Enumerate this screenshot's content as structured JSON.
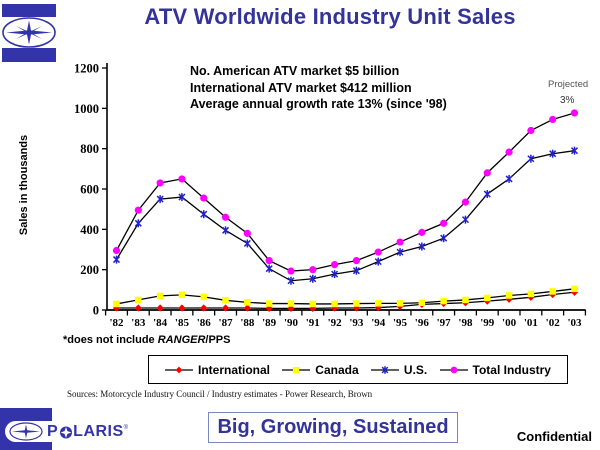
{
  "slide": {
    "title": "ATV Worldwide Industry Unit Sales",
    "tagline": "Big, Growing, Sustained",
    "confidential": "Confidential",
    "brand": {
      "prefix": "P",
      "suffix": "LARIS",
      "trademark": "®"
    }
  },
  "chart_data": {
    "type": "line",
    "ylabel": "Sales in thousands",
    "ylim": [
      0,
      1200
    ],
    "yticks": [
      0,
      200,
      400,
      600,
      800,
      1000,
      1200
    ],
    "grid": false,
    "legend_position": "bottom",
    "line_color": "#000000",
    "categories": [
      "'82",
      "'83",
      "'84",
      "'85",
      "'86",
      "'87",
      "'88",
      "'89",
      "'90",
      "'91",
      "'92",
      "'93",
      "'94",
      "'95",
      "'96",
      "'97",
      "'98",
      "'99",
      "'00",
      "'01",
      "'02",
      "'03"
    ],
    "series": [
      {
        "name": "International",
        "marker": "diamond",
        "color": "#ff0000",
        "values": [
          10,
          10,
          10,
          10,
          10,
          10,
          10,
          8,
          8,
          8,
          10,
          10,
          12,
          18,
          28,
          32,
          36,
          44,
          53,
          63,
          77,
          88
        ]
      },
      {
        "name": "Canada",
        "marker": "square",
        "color": "#ffff00",
        "values": [
          30,
          50,
          70,
          75,
          65,
          48,
          38,
          32,
          32,
          30,
          30,
          32,
          33,
          33,
          36,
          44,
          50,
          60,
          72,
          80,
          92,
          105
        ]
      },
      {
        "name": "U.S.",
        "marker": "star",
        "color": "#2222cc",
        "values": [
          250,
          430,
          550,
          560,
          475,
          395,
          330,
          205,
          145,
          155,
          178,
          195,
          240,
          287,
          315,
          356,
          448,
          575,
          650,
          750,
          775,
          790
        ]
      },
      {
        "name": "Total Industry",
        "marker": "circle",
        "color": "#ff00ff",
        "values": [
          295,
          495,
          630,
          650,
          555,
          460,
          380,
          245,
          193,
          200,
          225,
          245,
          287,
          337,
          385,
          430,
          535,
          680,
          783,
          890,
          945,
          977
        ]
      }
    ],
    "annotations": [
      "No. American ATV market $5 billion",
      "International ATV market $412 million",
      "Average annual growth rate 13% (since '98)"
    ],
    "projected_label": "Projected",
    "projected_value": "3%"
  },
  "footnote": {
    "prefix": "*does not include ",
    "italic": "RANGER",
    "suffix": "/PPS"
  },
  "sources": "Sources:  Motorcycle Industry Council / Industry estimates - Power Research, Brown"
}
